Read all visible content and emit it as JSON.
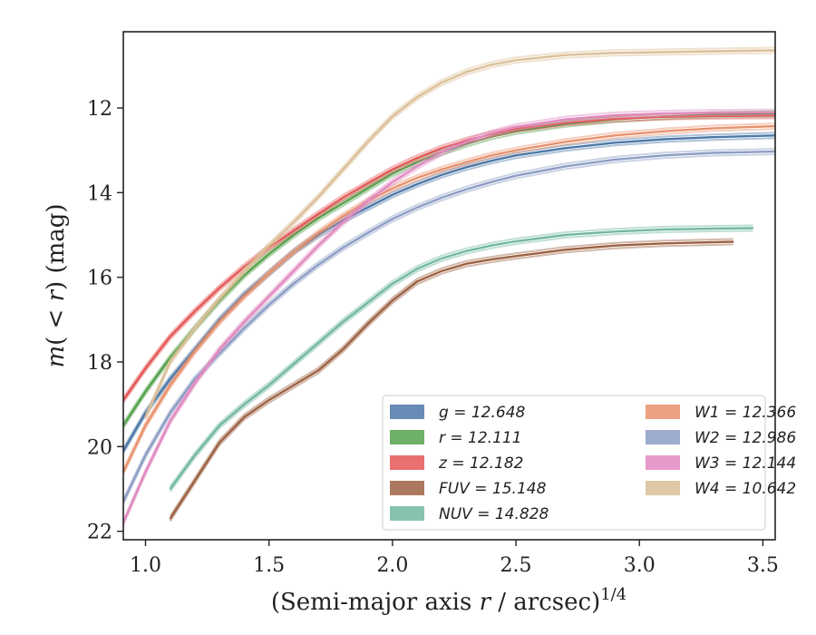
{
  "chart_data": {
    "type": "line",
    "xlabel": "(Semi-major axis r / arcsec)^1/4",
    "ylabel": "m(< r) (mag)",
    "xlim": [
      0.91,
      3.55
    ],
    "ylim": [
      22.2,
      10.2
    ],
    "y_inverted": true,
    "grid": false,
    "legend_position": "lower-right",
    "x_ticks": [
      "1.0",
      "1.5",
      "2.0",
      "2.5",
      "3.0",
      "3.5"
    ],
    "x_tick_values": [
      1.0,
      1.5,
      2.0,
      2.5,
      3.0,
      3.5
    ],
    "y_ticks": [
      "12",
      "14",
      "16",
      "18",
      "20",
      "22"
    ],
    "y_tick_values": [
      12,
      14,
      16,
      18,
      20,
      22
    ],
    "series": [
      {
        "name": "g = 12.648",
        "color": "#4c78a8",
        "x": [
          0.91,
          1.0,
          1.1,
          1.2,
          1.3,
          1.4,
          1.5,
          1.6,
          1.7,
          1.8,
          1.9,
          2.0,
          2.1,
          2.2,
          2.3,
          2.4,
          2.5,
          2.7,
          2.9,
          3.1,
          3.3,
          3.55
        ],
        "values": [
          20.1,
          19.2,
          18.4,
          17.7,
          17.0,
          16.4,
          15.9,
          15.4,
          15.0,
          14.65,
          14.35,
          14.05,
          13.8,
          13.58,
          13.4,
          13.25,
          13.12,
          12.95,
          12.82,
          12.74,
          12.69,
          12.65
        ]
      },
      {
        "name": "r = 12.111",
        "color": "#54a24b",
        "x": [
          0.91,
          1.0,
          1.1,
          1.2,
          1.3,
          1.4,
          1.5,
          1.6,
          1.7,
          1.8,
          1.9,
          2.0,
          2.1,
          2.2,
          2.3,
          2.4,
          2.5,
          2.7,
          2.9,
          3.1,
          3.3,
          3.55
        ],
        "values": [
          19.5,
          18.7,
          17.9,
          17.2,
          16.55,
          15.95,
          15.45,
          15.0,
          14.6,
          14.25,
          13.9,
          13.55,
          13.28,
          13.05,
          12.85,
          12.68,
          12.55,
          12.38,
          12.27,
          12.2,
          12.16,
          12.14
        ]
      },
      {
        "name": "z = 12.182",
        "color": "#e45756",
        "x": [
          0.91,
          1.0,
          1.1,
          1.2,
          1.3,
          1.4,
          1.5,
          1.6,
          1.7,
          1.8,
          1.9,
          2.0,
          2.1,
          2.2,
          2.3,
          2.4,
          2.5,
          2.7,
          2.9,
          3.1,
          3.3,
          3.55
        ],
        "values": [
          18.9,
          18.15,
          17.4,
          16.8,
          16.25,
          15.75,
          15.3,
          14.9,
          14.5,
          14.12,
          13.78,
          13.45,
          13.18,
          12.95,
          12.77,
          12.62,
          12.5,
          12.35,
          12.26,
          12.21,
          12.19,
          12.18
        ]
      },
      {
        "name": "FUV = 15.148",
        "color": "#9c6142",
        "x": [
          1.1,
          1.2,
          1.3,
          1.4,
          1.5,
          1.6,
          1.7,
          1.8,
          1.9,
          2.0,
          2.1,
          2.2,
          2.3,
          2.4,
          2.5,
          2.7,
          2.9,
          3.1,
          3.38
        ],
        "values": [
          21.7,
          20.8,
          19.9,
          19.3,
          18.9,
          18.55,
          18.2,
          17.7,
          17.1,
          16.55,
          16.1,
          15.85,
          15.68,
          15.58,
          15.5,
          15.35,
          15.25,
          15.2,
          15.16
        ]
      },
      {
        "name": "NUV = 14.828",
        "color": "#72b7a1",
        "x": [
          1.1,
          1.2,
          1.3,
          1.4,
          1.5,
          1.6,
          1.7,
          1.8,
          1.9,
          2.0,
          2.1,
          2.2,
          2.3,
          2.4,
          2.5,
          2.7,
          2.9,
          3.1,
          3.3,
          3.46
        ],
        "values": [
          21.0,
          20.2,
          19.5,
          19.0,
          18.55,
          18.05,
          17.55,
          17.05,
          16.6,
          16.15,
          15.8,
          15.55,
          15.38,
          15.25,
          15.15,
          15.0,
          14.92,
          14.87,
          14.85,
          14.84
        ]
      },
      {
        "name": "W1 = 12.366",
        "color": "#e8916c",
        "x": [
          0.91,
          1.0,
          1.1,
          1.2,
          1.3,
          1.4,
          1.5,
          1.6,
          1.7,
          1.8,
          1.9,
          2.0,
          2.1,
          2.2,
          2.3,
          2.4,
          2.5,
          2.7,
          2.9,
          3.1,
          3.3,
          3.55
        ],
        "values": [
          20.6,
          19.5,
          18.55,
          17.75,
          17.05,
          16.45,
          15.9,
          15.4,
          14.95,
          14.55,
          14.2,
          13.9,
          13.65,
          13.45,
          13.28,
          13.12,
          13.0,
          12.8,
          12.65,
          12.55,
          12.48,
          12.43
        ]
      },
      {
        "name": "W2 = 12.986",
        "color": "#8c9dc4",
        "x": [
          0.91,
          1.0,
          1.1,
          1.2,
          1.3,
          1.4,
          1.5,
          1.6,
          1.7,
          1.8,
          1.9,
          2.0,
          2.1,
          2.2,
          2.3,
          2.4,
          2.5,
          2.7,
          2.9,
          3.1,
          3.3,
          3.55
        ],
        "values": [
          21.3,
          20.2,
          19.2,
          18.4,
          17.8,
          17.2,
          16.65,
          16.15,
          15.7,
          15.3,
          14.95,
          14.62,
          14.35,
          14.12,
          13.92,
          13.75,
          13.6,
          13.38,
          13.22,
          13.12,
          13.06,
          13.03
        ]
      },
      {
        "name": "W3 = 12.144",
        "color": "#e08ac0",
        "x": [
          0.91,
          1.0,
          1.1,
          1.2,
          1.3,
          1.4,
          1.5,
          1.6,
          1.7,
          1.8,
          1.9,
          2.0,
          2.1,
          2.2,
          2.3,
          2.4,
          2.5,
          2.7,
          2.9,
          3.1,
          3.3,
          3.55
        ],
        "values": [
          21.8,
          20.6,
          19.4,
          18.5,
          17.7,
          17.05,
          16.45,
          15.85,
          15.25,
          14.7,
          14.2,
          13.75,
          13.38,
          13.05,
          12.8,
          12.6,
          12.45,
          12.27,
          12.17,
          12.13,
          12.11,
          12.1
        ]
      },
      {
        "name": "W4 = 10.642",
        "color": "#dbbf97",
        "x": [
          1.0,
          1.1,
          1.2,
          1.3,
          1.4,
          1.5,
          1.6,
          1.7,
          1.8,
          1.9,
          2.0,
          2.1,
          2.2,
          2.3,
          2.4,
          2.5,
          2.7,
          2.9,
          3.1,
          3.3,
          3.55
        ],
        "values": [
          19.3,
          18.0,
          17.2,
          16.5,
          15.85,
          15.25,
          14.7,
          14.1,
          13.45,
          12.8,
          12.2,
          11.75,
          11.4,
          11.15,
          10.98,
          10.87,
          10.75,
          10.7,
          10.68,
          10.66,
          10.64
        ]
      }
    ],
    "legend": [
      [
        "g = 12.648",
        "r = 12.111",
        "z = 12.182",
        "FUV = 15.148",
        "NUV = 14.828"
      ],
      [
        "W1 = 12.366",
        "W2 = 12.986",
        "W3 = 12.144",
        "W4 = 10.642"
      ]
    ]
  }
}
